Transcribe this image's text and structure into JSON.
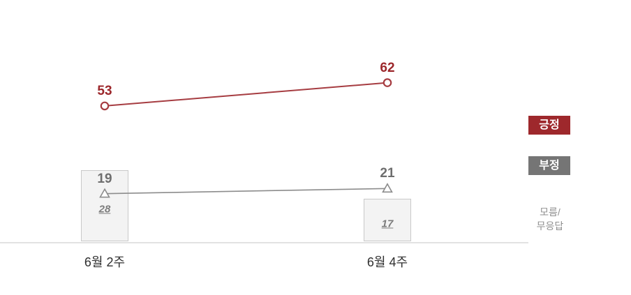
{
  "chart_data": {
    "type": "line",
    "title": "",
    "xlabel": "",
    "ylabel": "",
    "categories": [
      "6월 2주",
      "6월 4주"
    ],
    "series": [
      {
        "name": "긍정",
        "type": "line",
        "marker": "circle",
        "color": "#A63C41",
        "label_color": "#9C272B",
        "values": [
          53,
          62
        ]
      },
      {
        "name": "부정",
        "type": "line",
        "marker": "triangle",
        "color": "#8C8C8C",
        "label_color": "#6E6E6E",
        "values": [
          19,
          21
        ]
      },
      {
        "name": "모름/무응답",
        "type": "bar",
        "color": "#F3F3F3",
        "border_color": "#C9C9C9",
        "label_color": "#7C7C7C",
        "values": [
          28,
          17
        ]
      }
    ],
    "ylim": [
      0,
      100
    ],
    "grid": false,
    "legend_position": "right"
  },
  "legend": {
    "positive": {
      "label": "긍정",
      "bg": "#9E282C",
      "text_color": "#FFFFFF"
    },
    "negative": {
      "label": "부정",
      "bg": "#757575",
      "text_color": "#FFFFFF"
    },
    "unknown": {
      "line1": "모름/",
      "line2": "무응답",
      "text_color": "#8F8F8F"
    }
  },
  "axis": {
    "line_color": "#E2E2E2",
    "label_color": "#2F2F2F"
  }
}
